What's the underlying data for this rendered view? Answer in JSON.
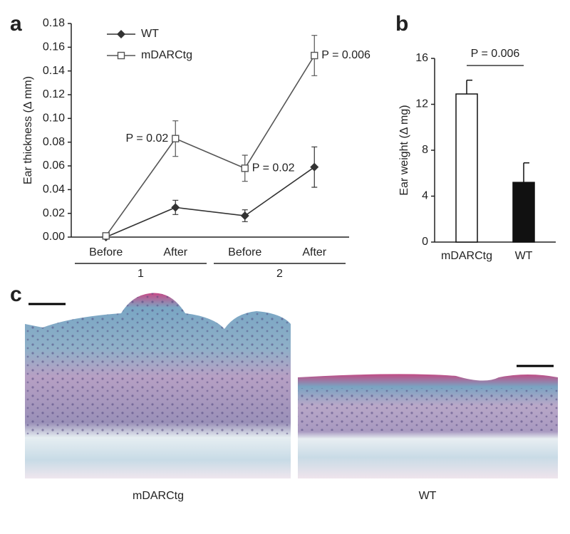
{
  "chart_data": [
    {
      "type": "line",
      "panel_label": "a",
      "y_label": "Ear thickness (Δ mm)",
      "categories": [
        "Before",
        "After",
        "Before",
        "After"
      ],
      "group_labels": [
        "1",
        "2"
      ],
      "series": [
        {
          "name": "WT",
          "color": "#333333",
          "marker": "diamond",
          "values": [
            0,
            0.025,
            0.018,
            0.059
          ],
          "errors": [
            0,
            0.006,
            0.005,
            0.017
          ]
        },
        {
          "name": "mDARCtg",
          "color": "#555555",
          "marker": "square",
          "values": [
            0.001,
            0.083,
            0.058,
            0.153
          ],
          "errors": [
            0.001,
            0.015,
            0.011,
            0.017
          ]
        }
      ],
      "annotations": [
        "P = 0.02",
        "P = 0.02",
        "P = 0.006"
      ],
      "ylim": [
        0,
        0.18
      ],
      "yticks": [
        {
          "value": 0,
          "label": "0.00"
        },
        {
          "value": 0.02,
          "label": "0.02"
        },
        {
          "value": 0.04,
          "label": "0.04"
        },
        {
          "value": 0.06,
          "label": "0.06"
        },
        {
          "value": 0.08,
          "label": "0.08"
        },
        {
          "value": 0.1,
          "label": "0.10"
        },
        {
          "value": 0.12,
          "label": "0.12"
        },
        {
          "value": 0.14,
          "label": "0.14"
        },
        {
          "value": 0.16,
          "label": "0.16"
        },
        {
          "value": 0.18,
          "label": "0.18"
        }
      ]
    },
    {
      "type": "bar",
      "panel_label": "b",
      "y_label": "Ear weight (Δ mg)",
      "categories": [
        "mDARCtg",
        "WT"
      ],
      "values": [
        12.9,
        5.2
      ],
      "errors": [
        1.2,
        1.7
      ],
      "colors": [
        "#ffffff",
        "#111111"
      ],
      "annotations": [
        "P = 0.006"
      ],
      "ylim": [
        0,
        16
      ],
      "yticks": [
        0,
        4,
        8,
        12,
        16
      ]
    }
  ],
  "panel_c": {
    "panel_label": "c",
    "image_labels": [
      "mDARCtg",
      "WT"
    ]
  }
}
